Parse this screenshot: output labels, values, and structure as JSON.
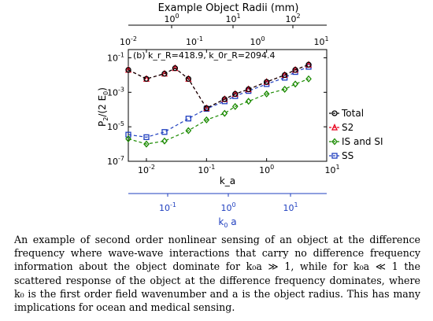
{
  "figure": {
    "top_axis_title": "Example Object Radii (mm)",
    "bottom_axis_title_text": "k_a",
    "blue_axis_title": "k",
    "blue_axis_title_sub": "0",
    "blue_axis_title_rest": " a",
    "ylabel_main": "P",
    "ylabel_sub": "2",
    "ylabel_rest": "/(2 E",
    "ylabel_sub2": "0",
    "ylabel_end": ")",
    "annotation": "(b) k_r_R=418.9, k_0r_R=2094.4"
  },
  "chart_data": {
    "type": "line",
    "x_scale": "log",
    "y_scale": "log",
    "xlim": [
      0.005,
      10
    ],
    "ylim": [
      1e-07,
      0.3
    ],
    "grid": false,
    "legend_position": "right",
    "series": [
      {
        "name": "Total",
        "marker": "circle",
        "color": "#000000",
        "x": [
          0.005,
          0.01,
          0.02,
          0.03,
          0.05,
          0.1,
          0.2,
          0.3,
          0.5,
          1,
          2,
          3,
          5
        ],
        "y": [
          0.02,
          0.006,
          0.012,
          0.025,
          0.006,
          0.00012,
          0.0004,
          0.0008,
          0.0015,
          0.004,
          0.01,
          0.02,
          0.04
        ],
        "labels": [
          "",
          "",
          "",
          "",
          "",
          "",
          "",
          "",
          "",
          "",
          "",
          "",
          ""
        ]
      },
      {
        "name": "S2",
        "marker": "triangle",
        "color": "#e8001c",
        "x": [
          0.005,
          0.01,
          0.02,
          0.03,
          0.05,
          0.1,
          0.2,
          0.3,
          0.5,
          1,
          2,
          3,
          5
        ],
        "y": [
          0.02,
          0.006,
          0.012,
          0.025,
          0.006,
          0.00012,
          0.0004,
          0.0008,
          0.0015,
          0.004,
          0.01,
          0.02,
          0.04
        ]
      },
      {
        "name": "IS and SI",
        "marker": "diamond",
        "color": "#1a8a00",
        "x": [
          0.005,
          0.01,
          0.02,
          0.05,
          0.1,
          0.2,
          0.3,
          0.5,
          1,
          2,
          3,
          5
        ],
        "y": [
          2e-06,
          1e-06,
          1.5e-06,
          6e-06,
          2.5e-05,
          6e-05,
          0.00015,
          0.0003,
          0.0008,
          0.0015,
          0.003,
          0.006
        ]
      },
      {
        "name": "SS",
        "marker": "square",
        "color": "#1f3fbf",
        "x": [
          0.005,
          0.01,
          0.02,
          0.05,
          0.1,
          0.2,
          0.3,
          0.5,
          1,
          2,
          3,
          5
        ],
        "y": [
          3.5e-06,
          2.5e-06,
          5e-06,
          3e-05,
          0.00011,
          0.0003,
          0.0006,
          0.0012,
          0.003,
          0.007,
          0.015,
          0.03
        ]
      }
    ],
    "x_ticks": [
      "10",
      "10",
      "10",
      "10"
    ],
    "x_tick_exps": [
      "-2",
      "-1",
      "0",
      "1"
    ],
    "y_ticks": [
      "10",
      "10",
      "10",
      "10"
    ],
    "y_tick_exps": [
      "-1",
      "-3",
      "-5",
      "-7"
    ],
    "top_axis": {
      "ticks": [
        "10",
        "10",
        "10"
      ],
      "exps": [
        "0",
        "1",
        "2"
      ],
      "values": [
        1,
        10,
        100
      ]
    },
    "top_k_axis": {
      "ticks": [
        "10",
        "10",
        "10",
        "10"
      ],
      "exps": [
        "-2",
        "-1",
        "0",
        "1"
      ]
    },
    "blue_axis": {
      "ticks": [
        "10",
        "10",
        "10"
      ],
      "exps": [
        "-1",
        "0",
        "1"
      ],
      "values": [
        0.1,
        1,
        10
      ]
    }
  },
  "caption": "An example of second order nonlinear sensing of an object at the difference frequency where wave-wave interactions that carry no difference frequency information about the object dominate for k₀a ≫ 1, while for k₀a ≪ 1 the scattered response of the object at the difference frequency dominates, where k₀ is the first order field wavenumber and a is the object radius. This has many implications for ocean and medical sensing."
}
